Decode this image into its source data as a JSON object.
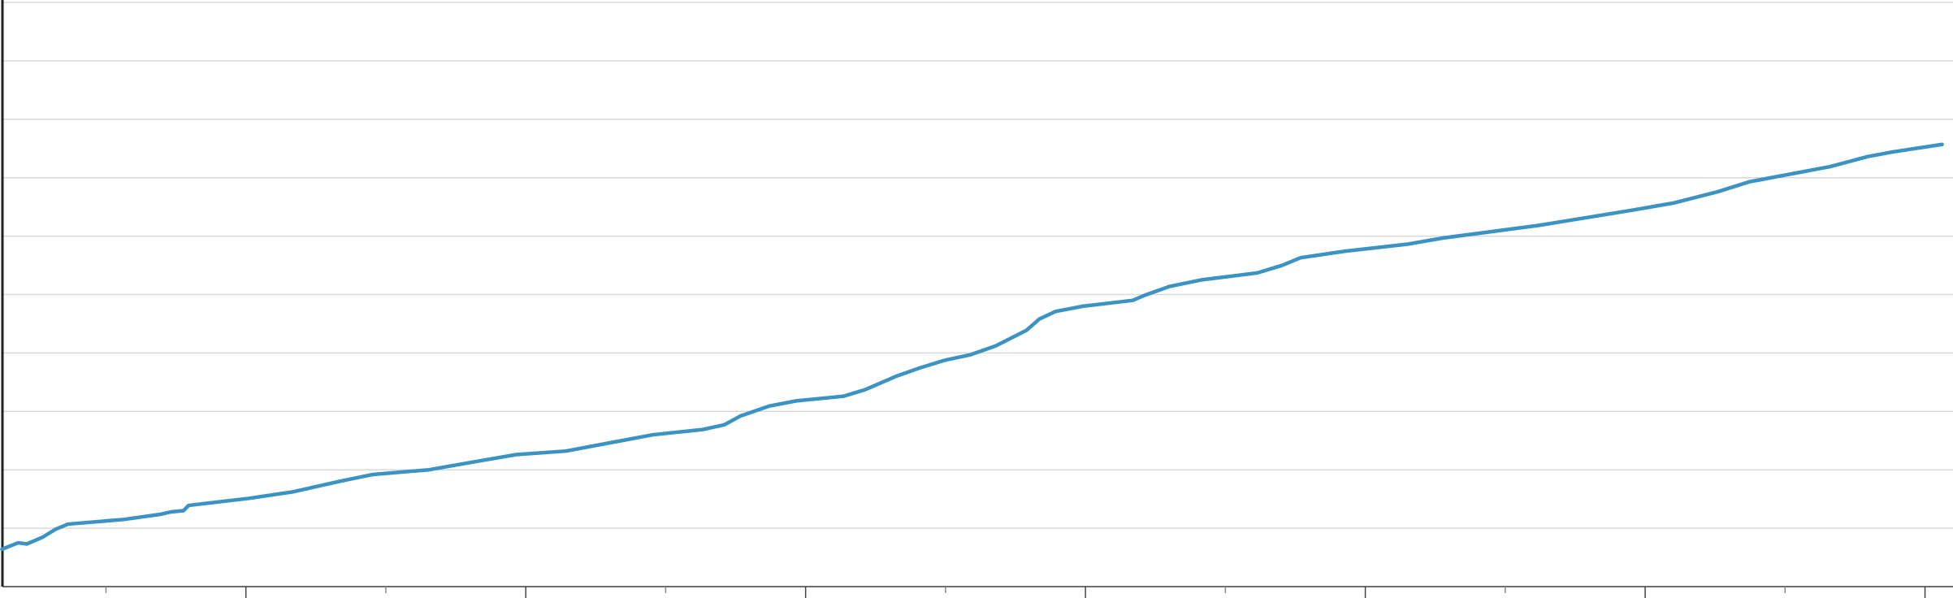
{
  "chart_data": {
    "type": "line",
    "x": [
      0.128,
      0.186,
      0.217,
      0.275,
      0.319,
      0.364,
      0.564,
      0.697,
      0.733,
      0.777,
      0.795,
      1.009,
      1.165,
      1.343,
      1.454,
      1.654,
      1.832,
      1.966,
      2.143,
      2.455,
      2.633,
      2.709,
      2.767,
      2.869,
      2.967,
      3.136,
      3.212,
      3.323,
      3.412,
      3.501,
      3.59,
      3.679,
      3.79,
      3.835,
      3.893,
      3.991,
      4.169,
      4.213,
      4.302,
      4.413,
      4.614,
      4.703,
      4.769,
      4.925,
      5.148,
      5.281,
      5.615,
      5.949,
      6.105,
      6.26,
      6.372,
      6.461,
      6.661,
      6.794,
      6.883,
      7.061
    ],
    "series": [
      {
        "color": "#3a93c3",
        "values": [
          0.64,
          0.75,
          0.73,
          0.85,
          0.98,
          1.07,
          1.15,
          1.24,
          1.28,
          1.3,
          1.39,
          1.51,
          1.62,
          1.81,
          1.92,
          2.0,
          2.15,
          2.26,
          2.32,
          2.6,
          2.69,
          2.77,
          2.92,
          3.09,
          3.18,
          3.26,
          3.37,
          3.6,
          3.75,
          3.88,
          3.97,
          4.12,
          4.39,
          4.58,
          4.71,
          4.8,
          4.9,
          4.99,
          5.14,
          5.25,
          5.37,
          5.5,
          5.63,
          5.74,
          5.86,
          5.97,
          6.18,
          6.44,
          6.57,
          6.76,
          6.93,
          7.01,
          7.19,
          7.36,
          7.44,
          7.57
        ]
      }
    ],
    "xlim": [
      0.13,
      7.1
    ],
    "xticks": [
      1,
      2,
      3,
      4,
      5,
      6,
      7
    ],
    "xticks_minor": [
      0.5,
      1.5,
      2.5,
      3.5,
      4.5,
      5.5,
      6.5
    ],
    "ylim": [
      0,
      10
    ],
    "yticks": [
      0,
      1,
      2,
      3,
      4,
      5,
      6,
      7,
      8,
      9,
      10
    ],
    "grid": true
  }
}
